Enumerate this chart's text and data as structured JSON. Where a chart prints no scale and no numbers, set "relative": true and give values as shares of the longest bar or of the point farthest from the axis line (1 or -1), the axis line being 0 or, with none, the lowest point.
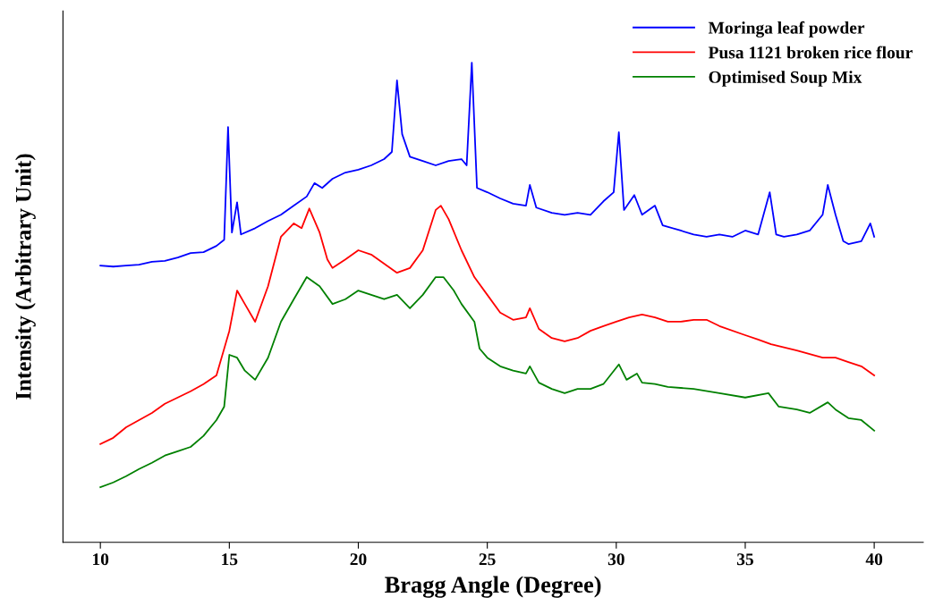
{
  "chart_data": {
    "type": "line",
    "relative": true,
    "xlabel": "Bragg Angle (Degree)",
    "ylabel": "Intensity (Arbitrary Unit)",
    "xlim": [
      8.55,
      41.9
    ],
    "xticks": [
      10,
      15,
      20,
      25,
      30,
      35,
      40
    ],
    "legend": "top right",
    "grid": false,
    "marker": "none",
    "line_style": "solid",
    "series": [
      {
        "name": "Moringa leaf powder",
        "color": "#0000ff",
        "x": [
          10,
          10.5,
          11,
          11.5,
          12,
          12.5,
          13,
          13.5,
          14,
          14.5,
          14.8,
          14.95,
          15.1,
          15.3,
          15.45,
          16,
          16.5,
          17,
          17.5,
          18,
          18.3,
          18.6,
          19,
          19.5,
          20,
          20.5,
          21,
          21.3,
          21.5,
          21.7,
          22,
          22.5,
          23,
          23.5,
          24,
          24.2,
          24.4,
          24.6,
          25,
          25.5,
          26,
          26.5,
          26.65,
          26.9,
          27.5,
          28,
          28.5,
          29,
          29.5,
          29.9,
          30.1,
          30.3,
          30.7,
          31,
          31.5,
          31.8,
          32.5,
          33,
          33.5,
          34,
          34.5,
          35,
          35.5,
          35.95,
          36.2,
          36.5,
          37,
          37.5,
          38,
          38.2,
          38.5,
          38.8,
          39,
          39.5,
          39.85,
          40
        ],
        "values": [
          0.577,
          0.575,
          0.577,
          0.579,
          0.585,
          0.587,
          0.594,
          0.603,
          0.605,
          0.618,
          0.631,
          0.866,
          0.646,
          0.709,
          0.642,
          0.655,
          0.67,
          0.683,
          0.702,
          0.721,
          0.749,
          0.739,
          0.758,
          0.771,
          0.777,
          0.786,
          0.799,
          0.814,
          0.963,
          0.851,
          0.804,
          0.795,
          0.786,
          0.795,
          0.799,
          0.786,
          1,
          0.739,
          0.73,
          0.717,
          0.706,
          0.702,
          0.745,
          0.698,
          0.687,
          0.683,
          0.687,
          0.683,
          0.711,
          0.73,
          0.855,
          0.693,
          0.724,
          0.683,
          0.702,
          0.661,
          0.65,
          0.642,
          0.637,
          0.642,
          0.637,
          0.65,
          0.642,
          0.73,
          0.642,
          0.637,
          0.642,
          0.65,
          0.683,
          0.745,
          0.683,
          0.628,
          0.622,
          0.628,
          0.665,
          0.637
        ]
      },
      {
        "name": "Pusa 1121 broken rice flour",
        "color": "#ff0000",
        "x": [
          10,
          10.5,
          11,
          11.5,
          12,
          12.5,
          13,
          13.5,
          14,
          14.5,
          15,
          15.3,
          15.6,
          16,
          16.5,
          17,
          17.5,
          17.8,
          18.1,
          18.5,
          18.8,
          19,
          19.5,
          20,
          20.5,
          21,
          21.5,
          22,
          22.5,
          23,
          23.2,
          23.5,
          24,
          24.5,
          25,
          25.5,
          26,
          26.5,
          26.65,
          27,
          27.5,
          28,
          28.5,
          29,
          29.5,
          30,
          30.5,
          31,
          31.5,
          32,
          32.5,
          33,
          33.5,
          34,
          35,
          35.5,
          36,
          37,
          38,
          38.5,
          39,
          39.5,
          40
        ],
        "values": [
          0.205,
          0.218,
          0.24,
          0.255,
          0.27,
          0.289,
          0.302,
          0.315,
          0.33,
          0.348,
          0.441,
          0.525,
          0.497,
          0.46,
          0.534,
          0.637,
          0.665,
          0.655,
          0.696,
          0.646,
          0.59,
          0.572,
          0.59,
          0.609,
          0.6,
          0.581,
          0.562,
          0.572,
          0.609,
          0.693,
          0.702,
          0.674,
          0.609,
          0.553,
          0.516,
          0.479,
          0.464,
          0.469,
          0.488,
          0.445,
          0.426,
          0.419,
          0.426,
          0.441,
          0.451,
          0.46,
          0.469,
          0.475,
          0.469,
          0.46,
          0.46,
          0.464,
          0.464,
          0.451,
          0.432,
          0.423,
          0.413,
          0.4,
          0.385,
          0.385,
          0.376,
          0.367,
          0.348
        ]
      },
      {
        "name": "Optimised Soup Mix",
        "color": "#008000",
        "x": [
          10,
          10.5,
          11,
          11.5,
          12,
          12.5,
          13,
          13.5,
          14,
          14.5,
          14.8,
          15,
          15.3,
          15.6,
          16,
          16.5,
          17,
          17.5,
          18,
          18.5,
          19,
          19.5,
          20,
          20.5,
          21,
          21.5,
          22,
          22.5,
          23,
          23.3,
          23.7,
          24,
          24.5,
          24.7,
          25,
          25.5,
          26,
          26.5,
          26.65,
          27,
          27.5,
          28,
          28.5,
          29,
          29.5,
          30.1,
          30.4,
          30.8,
          31,
          31.5,
          32,
          33,
          34,
          35,
          35.9,
          36.3,
          37,
          37.5,
          38.2,
          38.5,
          39,
          39.5,
          40
        ],
        "values": [
          0.115,
          0.125,
          0.138,
          0.153,
          0.166,
          0.181,
          0.19,
          0.199,
          0.222,
          0.255,
          0.283,
          0.391,
          0.385,
          0.358,
          0.339,
          0.385,
          0.46,
          0.507,
          0.553,
          0.534,
          0.497,
          0.507,
          0.525,
          0.516,
          0.507,
          0.516,
          0.488,
          0.516,
          0.553,
          0.553,
          0.525,
          0.497,
          0.46,
          0.404,
          0.385,
          0.367,
          0.358,
          0.352,
          0.367,
          0.333,
          0.32,
          0.311,
          0.32,
          0.32,
          0.33,
          0.371,
          0.339,
          0.352,
          0.333,
          0.33,
          0.324,
          0.32,
          0.311,
          0.302,
          0.311,
          0.283,
          0.277,
          0.27,
          0.292,
          0.277,
          0.259,
          0.255,
          0.233
        ]
      }
    ]
  }
}
